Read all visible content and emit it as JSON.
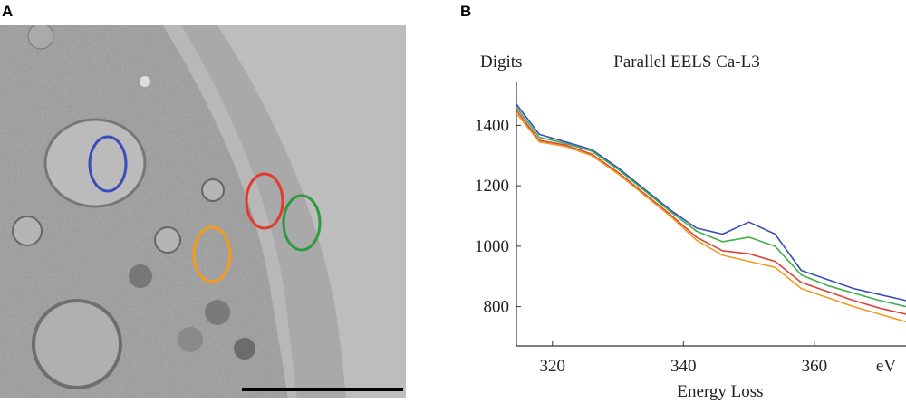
{
  "panel_a": {
    "label": "A"
  },
  "chart_data": {
    "type": "line",
    "panel_label": "B",
    "title": "Parallel EELS Ca-L3",
    "y_label": "Digits",
    "x_label": "Energy Loss",
    "x_unit": "eV",
    "x": [
      314.5,
      318,
      322,
      326,
      330,
      334,
      338,
      342,
      346,
      350,
      354,
      358,
      362,
      366,
      370,
      374
    ],
    "series": [
      {
        "name": "blue",
        "color": "#3b4db8",
        "values": [
          1470,
          1370,
          1345,
          1320,
          1260,
          1190,
          1120,
          1060,
          1040,
          1080,
          1040,
          920,
          890,
          860,
          840,
          820
        ]
      },
      {
        "name": "green",
        "color": "#3fb14a",
        "values": [
          1460,
          1360,
          1340,
          1315,
          1255,
          1185,
          1115,
          1050,
          1015,
          1030,
          1000,
          905,
          870,
          845,
          820,
          800
        ]
      },
      {
        "name": "red",
        "color": "#d9443a",
        "values": [
          1450,
          1350,
          1335,
          1305,
          1245,
          1175,
          1105,
          1030,
          985,
          975,
          950,
          880,
          850,
          820,
          795,
          775
        ]
      },
      {
        "name": "orange",
        "color": "#f39a1e",
        "values": [
          1440,
          1345,
          1330,
          1300,
          1240,
          1170,
          1100,
          1020,
          970,
          950,
          930,
          860,
          830,
          800,
          775,
          750
        ]
      }
    ],
    "xlim": [
      314.5,
      374
    ],
    "ylim": [
      670,
      1545
    ],
    "xticks": [
      320,
      340,
      360
    ],
    "yticks": [
      800,
      1000,
      1200,
      1400
    ],
    "grid": false
  }
}
